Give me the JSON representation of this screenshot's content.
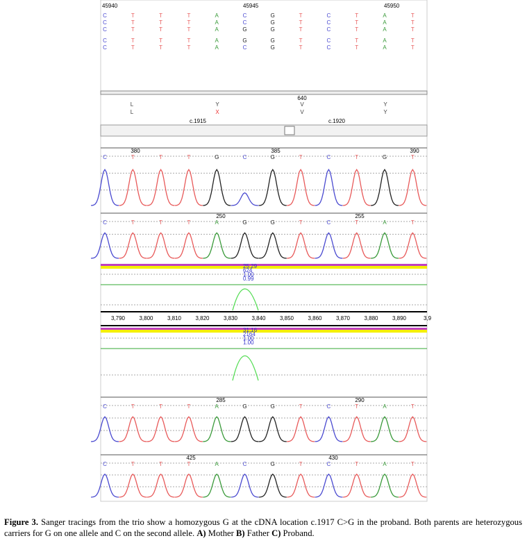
{
  "alignment": {
    "positions": [
      "45940",
      "45945",
      "45950"
    ],
    "rows": [
      [
        "C",
        "T",
        "T",
        "T",
        "A",
        "C",
        "G",
        "T",
        "C",
        "T",
        "A",
        "T"
      ],
      [
        "C",
        "T",
        "T",
        "T",
        "A",
        "C",
        "G",
        "T",
        "C",
        "T",
        "A",
        "T"
      ],
      [
        "C",
        "T",
        "T",
        "T",
        "A",
        "G",
        "G",
        "T",
        "C",
        "T",
        "A",
        "T"
      ],
      [
        "C",
        "T",
        "T",
        "T",
        "A",
        "G",
        "G",
        "T",
        "C",
        "T",
        "A",
        "T"
      ],
      [
        "C",
        "T",
        "T",
        "T",
        "A",
        "C",
        "G",
        "T",
        "C",
        "T",
        "A",
        "T"
      ]
    ]
  },
  "protein": {
    "rows": [
      [
        "L",
        "Y",
        "V",
        "Y"
      ],
      [
        "L",
        "X",
        "V",
        "Y"
      ]
    ],
    "codon": "640",
    "cdna": [
      "c.1915",
      "c.1920"
    ]
  },
  "traces": [
    {
      "numbers": [
        "380",
        "385",
        "390"
      ],
      "bases": [
        "C",
        "T",
        "T",
        "T",
        "G",
        "C",
        "G",
        "T",
        "C",
        "T",
        "G",
        "T"
      ]
    },
    {
      "numbers": [
        "250",
        "255"
      ],
      "bases": [
        "C",
        "T",
        "T",
        "T",
        "A",
        "G",
        "G",
        "T",
        "C",
        "T",
        "A",
        "T"
      ]
    },
    {
      "numbers": [
        "285",
        "290"
      ],
      "bases": [
        "C",
        "T",
        "T",
        "T",
        "A",
        "G",
        "G",
        "T",
        "C",
        "T",
        "A",
        "T"
      ]
    },
    {
      "numbers": [
        "425",
        "430"
      ],
      "bases": [
        "C",
        "T",
        "T",
        "T",
        "A",
        "C",
        "G",
        "T",
        "C",
        "T",
        "A",
        "T"
      ]
    }
  ],
  "quality": [
    {
      "values": [
        "25.29",
        "624",
        "1.00",
        "0.99"
      ]
    },
    {
      "values": [
        "31.16",
        "2164",
        "1.00",
        "1.00"
      ]
    }
  ],
  "axis": [
    "3,790",
    "3,800",
    "3,810",
    "3,820",
    "3,830",
    "3,840",
    "3,850",
    "3,860",
    "3,870",
    "3,880",
    "3,890",
    "3,9"
  ],
  "caption": {
    "figure": "Figure 3.",
    "text": "Sanger tracings from the trio show a homozygous G at the cDNA location c.1917 C>G in the proband. Both parents are heterozygous carriers for G on one allele and C on the second allele.",
    "parts": [
      {
        "key": "A)",
        "label": "Mother"
      },
      {
        "key": "B)",
        "label": "Father"
      },
      {
        "key": "C)",
        "label": "Proband."
      }
    ]
  }
}
